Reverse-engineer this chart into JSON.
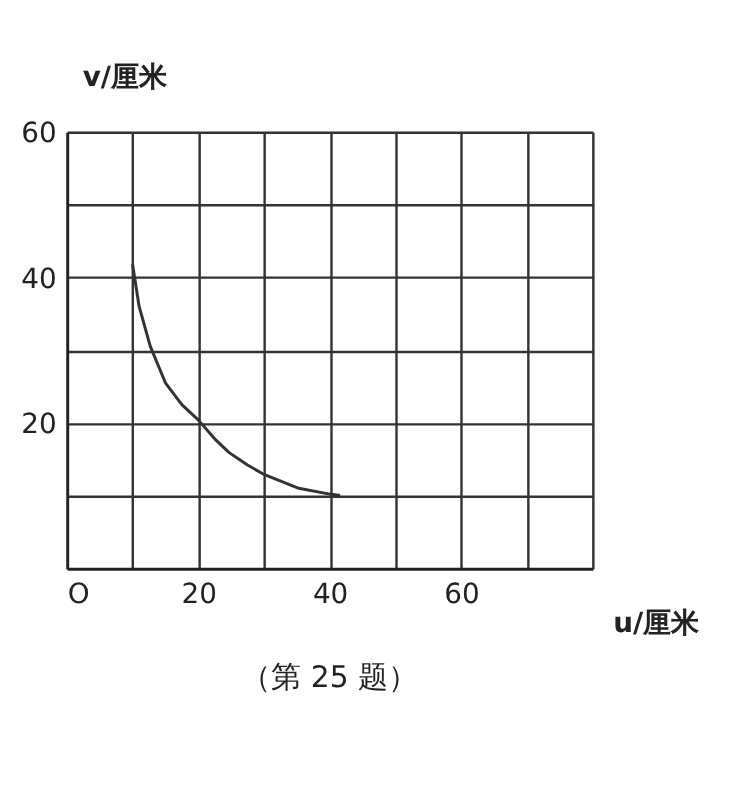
{
  "chart_data": {
    "type": "line",
    "xlabel": "u/厘米",
    "ylabel": "v/厘米",
    "x": [
      10,
      11,
      12.7,
      15,
      17.5,
      20,
      22.5,
      24.7,
      27.5,
      30,
      35.3,
      40,
      41.6
    ],
    "series": [
      {
        "color": "#333333",
        "values": [
          41.8,
          36,
          30.5,
          25.5,
          22.5,
          20.4,
          17.8,
          15.9,
          14.2,
          12.9,
          11,
          10.2,
          10
        ]
      }
    ],
    "xlim": [
      0,
      80
    ],
    "ylim": [
      0,
      60
    ],
    "xticks": [
      {
        "value": 0,
        "label": "O"
      },
      {
        "value": 10,
        "label": null
      },
      20,
      {
        "value": 30,
        "label": null
      },
      40,
      {
        "value": 50,
        "label": null
      },
      60,
      {
        "value": 70,
        "label": null
      },
      {
        "value": 80,
        "label": null
      }
    ],
    "yticks": [
      {
        "value": 0,
        "label": null
      },
      {
        "value": 10,
        "label": null
      },
      20,
      {
        "value": 30,
        "label": null
      },
      40,
      {
        "value": 50,
        "label": null
      },
      60
    ],
    "grid": true,
    "marker": "none",
    "line_style": "solid",
    "annotations": [
      "（第 25 题）"
    ]
  }
}
